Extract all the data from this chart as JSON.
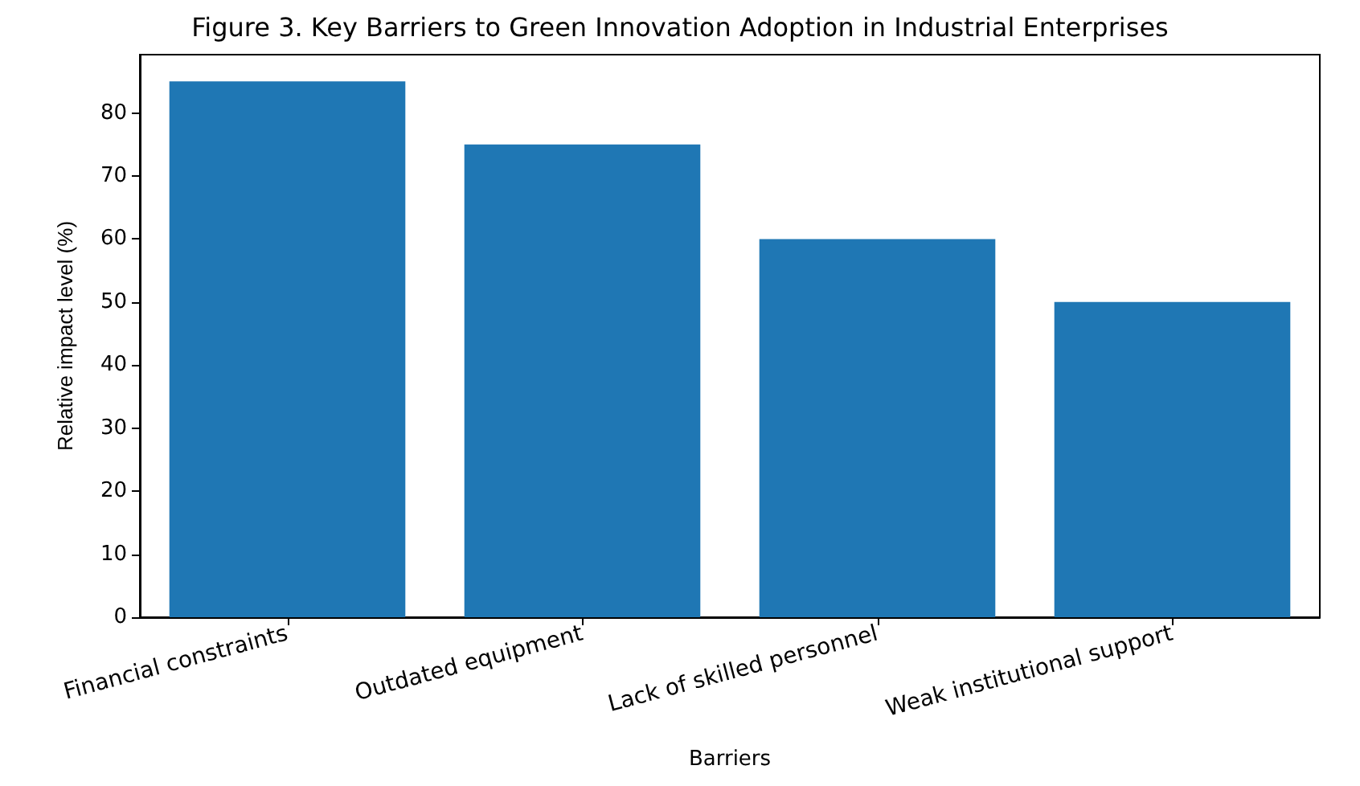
{
  "chart_data": {
    "type": "bar",
    "title": "Figure 3. Key Barriers to Green Innovation Adoption in Industrial Enterprises",
    "xlabel": "Barriers",
    "ylabel": "Relative impact level (%)",
    "categories": [
      "Financial constraints",
      "Outdated equipment",
      "Lack of skilled personnel",
      "Weak institutional support"
    ],
    "values": [
      85,
      75,
      60,
      50
    ],
    "color": "#1f77b4",
    "ylim": [
      0,
      89.25
    ],
    "yticks": [
      0,
      10,
      20,
      30,
      40,
      50,
      60,
      70,
      80
    ],
    "grid": false
  }
}
